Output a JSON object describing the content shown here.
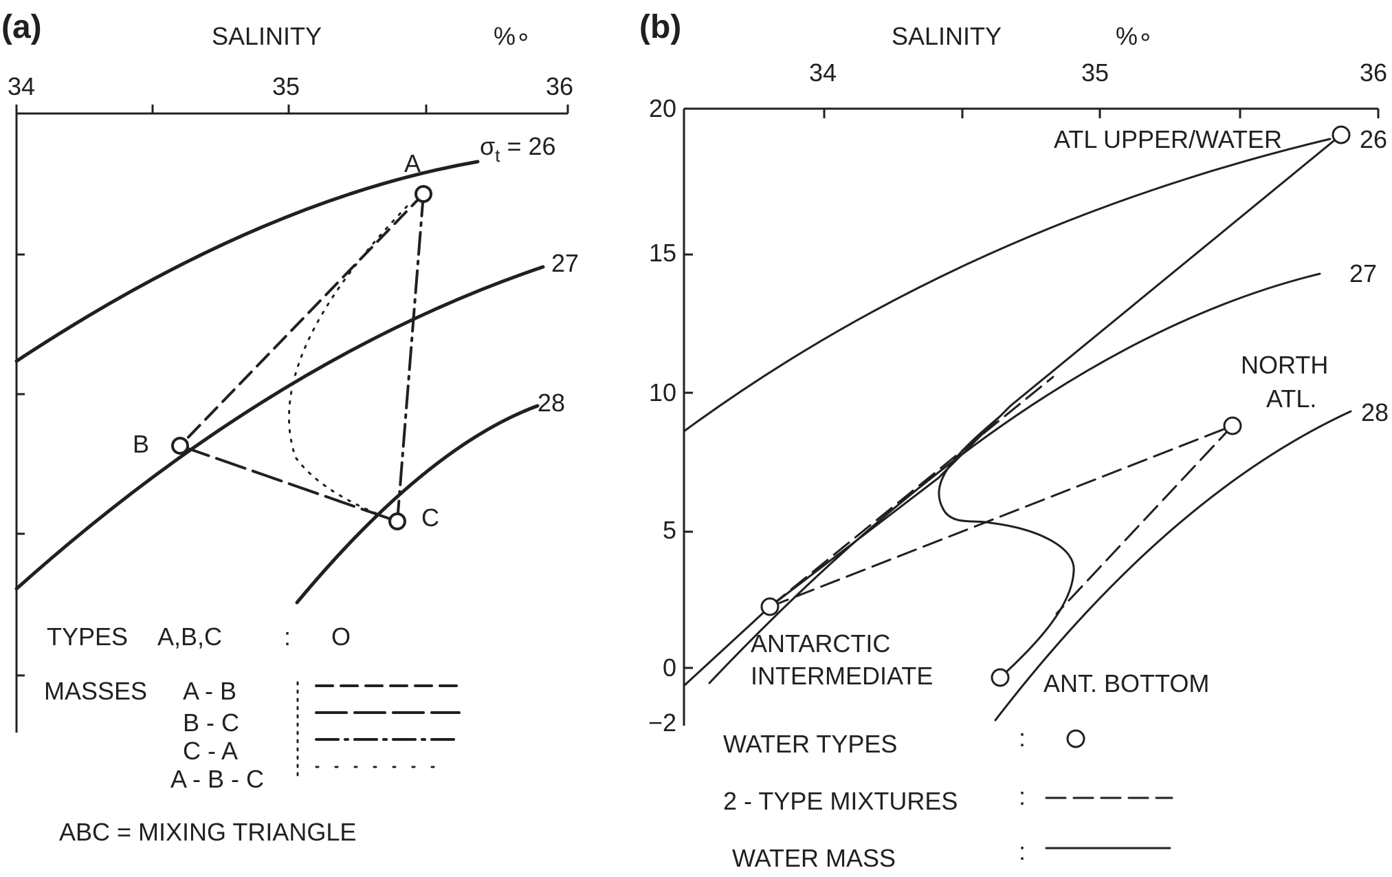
{
  "panel_a": {
    "label": "(a)",
    "axis_title": "SALINITY",
    "unit": "%∘",
    "x_ticks": [
      "34",
      "35",
      "36"
    ],
    "sigma_prefix": "σ",
    "sigma_sub": "t",
    "sigma_eq": " = 26",
    "sigma_labels": [
      "27",
      "28"
    ],
    "points": [
      "A",
      "B",
      "C"
    ],
    "legend": {
      "types_label": "TYPES",
      "types_value": "A,B,C",
      "types_colon": ":",
      "types_symbol": "O",
      "masses_label": "MASSES",
      "masses_items": [
        "A - B",
        "B - C",
        "C - A",
        "A - B - C"
      ],
      "equation": "ABC = MIXING TRIANGLE"
    }
  },
  "panel_b": {
    "label": "(b)",
    "axis_title": "SALINITY",
    "unit": "%∘",
    "x_ticks": [
      "34",
      "35",
      "36"
    ],
    "y_ticks": [
      "20",
      "15",
      "10",
      "5",
      "0",
      "−2"
    ],
    "sigma_labels": [
      "26",
      "27",
      "28"
    ],
    "labels": {
      "atl_upper": "ATL UPPER/WATER",
      "north_atl_1": "NORTH",
      "north_atl_2": "ATL.",
      "antarctic_1": "ANTARCTIC",
      "antarctic_2": "INTERMEDIATE",
      "ant_bottom": "ANT. BOTTOM"
    },
    "legend": {
      "water_types": "WATER TYPES",
      "two_type": "2 - TYPE MIXTURES",
      "water_mass": "WATER MASS",
      "colon": ":"
    }
  }
}
